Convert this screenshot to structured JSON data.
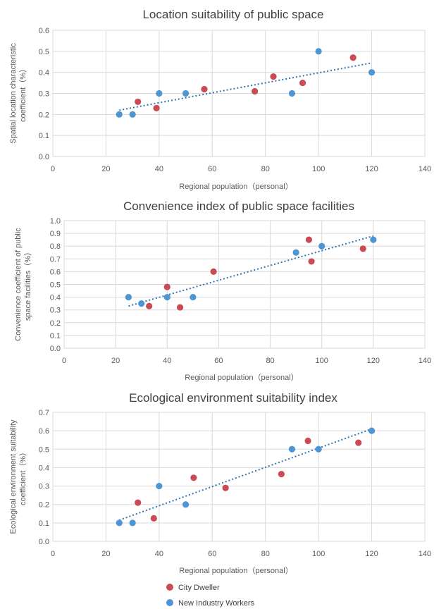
{
  "colors": {
    "city_dweller": "#c94c55",
    "new_industry_workers": "#4e95d4",
    "trendline": "#2e75b6"
  },
  "legend": [
    {
      "name": "City Dweller",
      "color": "#c94c55"
    },
    {
      "name": "New Industry Workers",
      "color": "#4e95d4"
    }
  ],
  "chart_data": [
    {
      "type": "scatter",
      "title": "Location suitability of public space",
      "xlabel": "Regional population（personal）",
      "ylabel": [
        "Spatial location characteristic",
        "coefficient（%）"
      ],
      "xlim": [
        0,
        140
      ],
      "ylim": [
        0,
        0.6
      ],
      "xticks": [
        "0",
        "20",
        "40",
        "60",
        "80",
        "100",
        "120",
        "140"
      ],
      "yticks": [
        "0.0",
        "0.1",
        "0.2",
        "0.3",
        "0.4",
        "0.5",
        "0.6"
      ],
      "grid": true,
      "trendline": {
        "x": [
          25,
          120
        ],
        "y": [
          0.22,
          0.445
        ]
      },
      "series": [
        {
          "name": "City Dweller",
          "x": [
            32,
            39,
            57,
            76,
            83,
            94,
            113
          ],
          "y": [
            0.26,
            0.23,
            0.32,
            0.31,
            0.38,
            0.35,
            0.47
          ]
        },
        {
          "name": "New Industry Workers",
          "x": [
            25,
            30,
            40,
            50,
            90,
            100,
            120
          ],
          "y": [
            0.2,
            0.2,
            0.3,
            0.3,
            0.3,
            0.5,
            0.4
          ]
        }
      ]
    },
    {
      "type": "scatter",
      "title": "Convenience index of public space facilities",
      "xlabel": "Regional population（personal）",
      "ylabel": [
        "Convenience coefficient of public",
        "space facilities（%）"
      ],
      "xlim": [
        0,
        140
      ],
      "ylim": [
        0,
        1.0
      ],
      "xticks": [
        "0",
        "20",
        "40",
        "60",
        "80",
        "100",
        "120",
        "140"
      ],
      "yticks": [
        "0.0",
        "0.1",
        "0.2",
        "0.3",
        "0.4",
        "0.5",
        "0.6",
        "0.7",
        "0.8",
        "0.9",
        "1.0"
      ],
      "grid": true,
      "trendline": {
        "x": [
          25,
          120
        ],
        "y": [
          0.33,
          0.88
        ]
      },
      "series": [
        {
          "name": "City Dweller",
          "x": [
            33,
            40,
            45,
            58,
            95,
            96,
            116
          ],
          "y": [
            0.33,
            0.48,
            0.32,
            0.6,
            0.85,
            0.68,
            0.78
          ]
        },
        {
          "name": "New Industry Workers",
          "x": [
            25,
            30,
            40,
            50,
            90,
            100,
            120
          ],
          "y": [
            0.4,
            0.35,
            0.4,
            0.4,
            0.75,
            0.8,
            0.85
          ]
        }
      ]
    },
    {
      "type": "scatter",
      "title": "Ecological environment suitability index",
      "xlabel": "Regional population（personal）",
      "ylabel": [
        "Ecological environment suitability",
        "coefficient（%）"
      ],
      "xlim": [
        0,
        140
      ],
      "ylim": [
        0,
        0.7
      ],
      "xticks": [
        "0",
        "20",
        "40",
        "60",
        "80",
        "100",
        "120",
        "140"
      ],
      "yticks": [
        "0.0",
        "0.1",
        "0.2",
        "0.3",
        "0.4",
        "0.5",
        "0.6",
        "0.7"
      ],
      "grid": true,
      "trendline": {
        "x": [
          25,
          120
        ],
        "y": [
          0.115,
          0.61
        ]
      },
      "series": [
        {
          "name": "City Dweller",
          "x": [
            32,
            38,
            53,
            65,
            86,
            96,
            115
          ],
          "y": [
            0.21,
            0.125,
            0.345,
            0.29,
            0.365,
            0.545,
            0.535
          ]
        },
        {
          "name": "New Industry Workers",
          "x": [
            25,
            30,
            40,
            50,
            90,
            100,
            120
          ],
          "y": [
            0.1,
            0.1,
            0.3,
            0.2,
            0.5,
            0.5,
            0.6
          ]
        }
      ]
    }
  ]
}
